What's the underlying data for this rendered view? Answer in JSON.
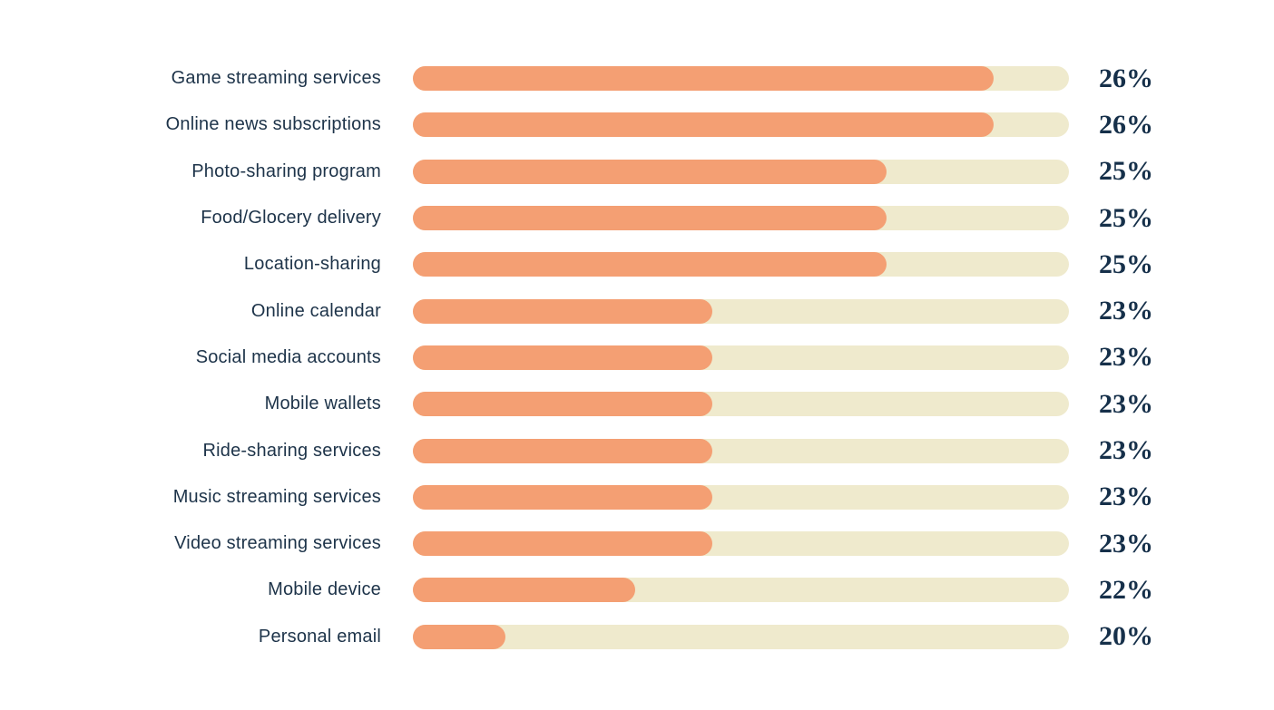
{
  "chart_data": {
    "type": "bar",
    "orientation": "horizontal",
    "title": "",
    "xlabel": "",
    "ylabel": "",
    "legend": false,
    "grid": false,
    "categories": [
      "Game streaming services",
      "Online news subscriptions",
      "Photo-sharing program",
      "Food/Glocery delivery",
      "Location-sharing",
      "Online calendar",
      "Social media accounts",
      "Mobile wallets",
      "Ride-sharing services",
      "Music streaming services",
      "Video streaming services",
      "Mobile device",
      "Personal email"
    ],
    "values": [
      26,
      26,
      25,
      25,
      25,
      23,
      23,
      23,
      23,
      23,
      23,
      22,
      20
    ],
    "value_labels": [
      "26%",
      "26%",
      "25%",
      "25%",
      "25%",
      "23%",
      "23%",
      "23%",
      "23%",
      "23%",
      "23%",
      "22%",
      "20%"
    ],
    "bar_fill_fractions": [
      0.885,
      0.885,
      0.722,
      0.722,
      0.722,
      0.456,
      0.456,
      0.456,
      0.456,
      0.456,
      0.456,
      0.339,
      0.141
    ],
    "implied_axis_range": [
      19,
      27
    ]
  },
  "colors": {
    "bar_fill": "#f49f73",
    "bar_track": "#efeacd",
    "label_text": "#1d3349",
    "value_text": "#16304a",
    "background": "#ffffff"
  }
}
